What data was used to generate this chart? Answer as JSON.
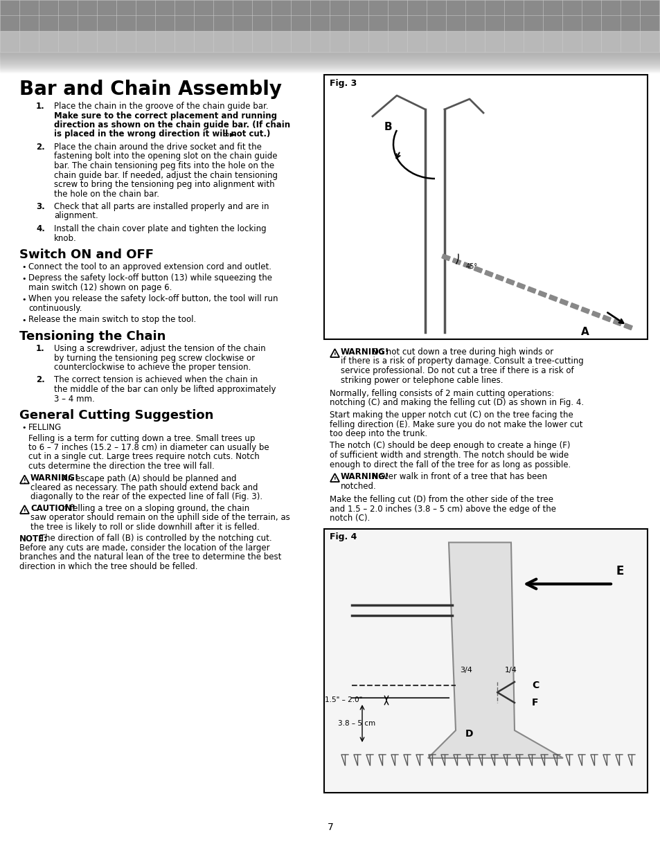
{
  "bg_color": "#ffffff",
  "header_color1": "#999999",
  "header_color2": "#bbbbbb",
  "page_number": "7",
  "title": "Bar and Chain Assembly",
  "section2": "Switch ON and OFF",
  "section3": "Tensioning the Chain",
  "section4": "General Cutting Suggestion",
  "assembly_steps": [
    [
      "1.",
      "Place the chain in the groove of the chain guide bar.",
      "Make sure to the correct placement and running",
      "direction as shown on the chain guide bar. (If chain",
      "is placed in the wrong direction it will not cut.)"
    ],
    [
      "2.",
      "Place the chain around the drive socket and fit the",
      "fastening bolt into the opening slot on the chain guide",
      "bar. The chain tensioning peg fits into the hole on the",
      "chain guide bar. If needed, adjust the chain tensioning",
      "screw to bring the tensioning peg into alignment with",
      "the hole on the chain bar."
    ],
    [
      "3.",
      "Check that all parts are installed properly and are in",
      "alignment."
    ],
    [
      "4.",
      "Install the chain cover plate and tighten the locking",
      "knob."
    ]
  ],
  "assembly_bold": [
    false,
    true,
    true,
    true,
    false,
    false,
    false,
    false,
    false,
    false
  ],
  "switch_bullets": [
    [
      "Connect the tool to an approved extension cord and outlet."
    ],
    [
      "Depress the safety lock-off button (13) while squeezing the",
      "main switch (12) shown on page 6."
    ],
    [
      "When you release the safety lock-off button, the tool will run",
      "continuously."
    ],
    [
      "Release the main switch to stop the tool."
    ]
  ],
  "tension_steps": [
    [
      "1.",
      "Using a screwdriver, adjust the tension of the chain",
      "by turning the tensioning peg screw clockwise or",
      "counterclockwise to achieve the proper tension."
    ],
    [
      "2.",
      "The correct tension is achieved when the chain in",
      "the middle of the bar can only be lifted approximately",
      "3 – 4 mm."
    ]
  ],
  "cutting_bullet": "FELLING",
  "cutting_text": [
    "Felling is a term for cutting down a tree. Small trees up",
    "to 6 – 7 inches (15.2 – 17.8 cm) in diameter can usually be",
    "cut in a single cut. Large trees require notch cuts. Notch",
    "cuts determine the direction the tree will fall."
  ],
  "warning1_lines": [
    "WARNING! An escape path (A) should be planned and",
    "cleared as necessary. The path should extend back and",
    "diagonally to the rear of the expected line of fall (Fig. 3)."
  ],
  "caution1_lines": [
    "CAUTION! If felling a tree on a sloping ground, the chain",
    "saw operator should remain on the uphill side of the terrain, as",
    "the tree is likely to roll or slide downhill after it is felled."
  ],
  "note1_lines": [
    "NOTE: The direction of fall (B) is controlled by the notching cut.",
    "Before any cuts are made, consider the location of the larger",
    "branches and the natural lean of the tree to determine the best",
    "direction in which the tree should be felled."
  ],
  "right_warning_lines": [
    "WARNING! Do not cut down a tree during high winds or",
    "if there is a risk of property damage. Consult a tree-cutting",
    "service professional. Do not cut a tree if there is a risk of",
    "striking power or telephone cable lines."
  ],
  "right_p1": [
    "Normally, felling consists of 2 main cutting operations:",
    "notching (C) and making the felling cut (D) as shown in Fig. 4."
  ],
  "right_p2": [
    "Start making the upper notch cut (C) on the tree facing the",
    "felling direction (E). Make sure you do not make the lower cut",
    "too deep into the trunk."
  ],
  "right_p3": [
    "The notch (C) should be deep enough to create a hinge (F)",
    "of sufficient width and strength. The notch should be wide",
    "enough to direct the fall of the tree for as long as possible."
  ],
  "right_warning2_lines": [
    "WARNING! Never walk in front of a tree that has been",
    "notched."
  ],
  "right_p4": [
    "Make the felling cut (D) from the other side of the tree",
    "and 1.5 – 2.0 inches (3.8 – 5 cm) above the edge of the",
    "notch (C)."
  ]
}
